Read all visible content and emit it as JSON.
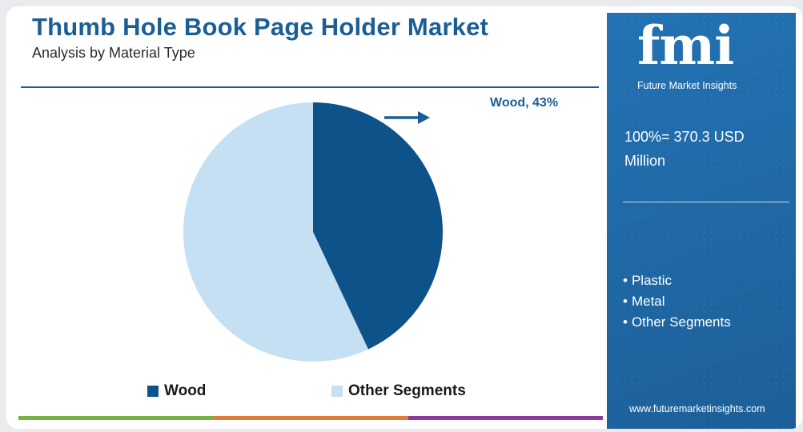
{
  "header": {
    "title": "Thumb Hole Book Page Holder Market",
    "subtitle": "Analysis by Material Type"
  },
  "chart_data": {
    "type": "pie",
    "categories": [
      "Wood",
      "Other Segments"
    ],
    "values": [
      43,
      57
    ],
    "colors": [
      "#0d5289",
      "#c5e0f3"
    ],
    "callout": "Wood, 43%",
    "legend_position": "bottom"
  },
  "sidebar": {
    "logo_text": "fmi",
    "logo_caption": "Future Market Insights",
    "total_label": "100%= 370.3 USD Million",
    "segments": [
      "Plastic",
      "Metal",
      "Other Segments"
    ],
    "website": "www.futuremarketinsights.com"
  },
  "colors": {
    "brand": "#1b5e95",
    "sidebar": "#1f68a5",
    "bar_green": "#74b43f",
    "bar_orange": "#e07b39",
    "bar_purple": "#8a3a9c"
  }
}
